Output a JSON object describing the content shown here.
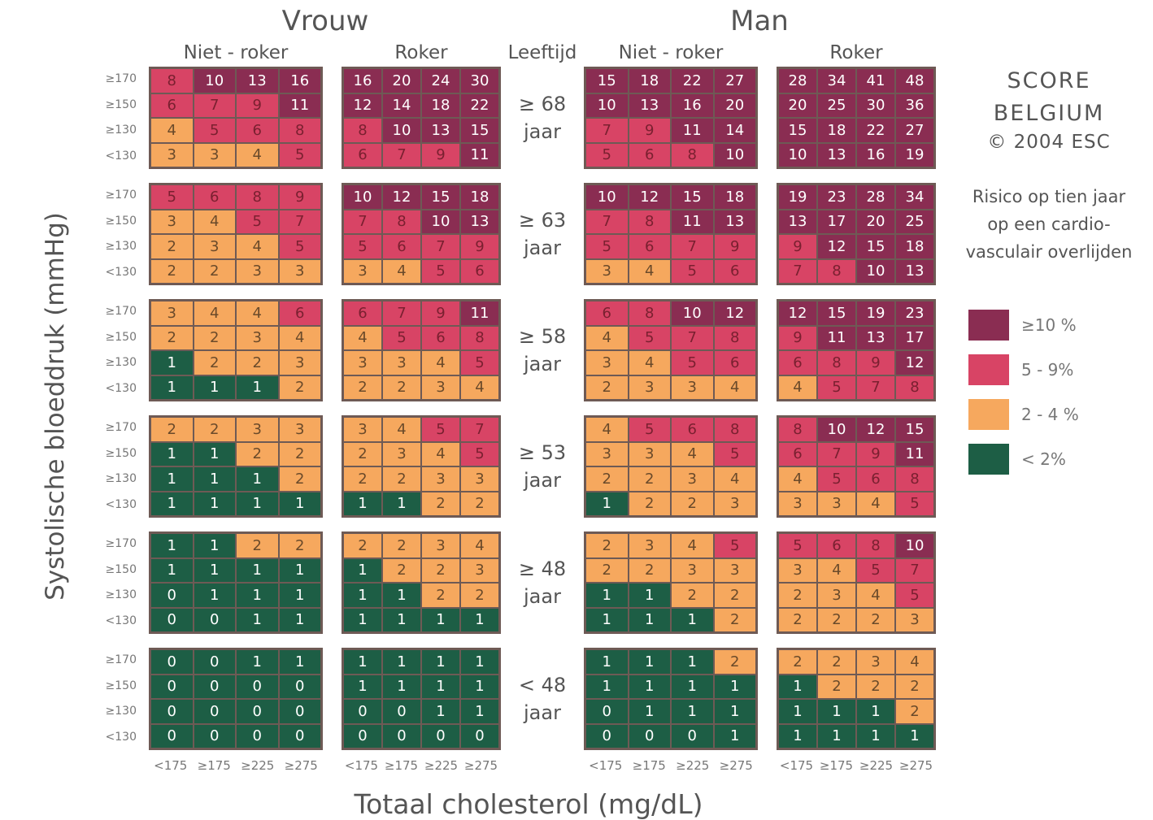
{
  "headers": {
    "female": "Vrouw",
    "male": "Man",
    "female_nonsmoker": "Niet - roker",
    "female_smoker": "Roker",
    "age_label": "Leeftijd",
    "male_nonsmoker": "Niet - roker",
    "male_smoker": "Roker"
  },
  "y_axis_label": "Systolische bloeddruk (mmHg)",
  "x_axis_label": "Totaal cholesterol  (mg/dL)",
  "score": {
    "line1": "SCORE",
    "line2": "BELGIUM",
    "line3": "© 2004 ESC",
    "desc1": "Risico op tien jaar",
    "desc2": "op een cardio-",
    "desc3": "vasculair overlijden"
  },
  "legend": [
    {
      "label": "≥10 %",
      "color": "#8a2d52"
    },
    {
      "label": "5 - 9%",
      "color": "#d84465"
    },
    {
      "label": "2 - 4 %",
      "color": "#f6a85e"
    },
    {
      "label": "< 2%",
      "color": "#1d5e45"
    }
  ],
  "chart_data": {
    "type": "heatmap",
    "bp_rows": [
      "≥170",
      "≥150",
      "≥130",
      "<130"
    ],
    "chol_cols": [
      "<175",
      "≥175",
      "≥225",
      "≥275"
    ],
    "age_groups": [
      {
        "label": "≥ 68",
        "unit": "jaar"
      },
      {
        "label": "≥ 63",
        "unit": "jaar"
      },
      {
        "label": "≥ 58",
        "unit": "jaar"
      },
      {
        "label": "≥ 53",
        "unit": "jaar"
      },
      {
        "label": "≥ 48",
        "unit": "jaar"
      },
      {
        "label": "< 48",
        "unit": "jaar"
      }
    ],
    "panels": [
      {
        "name": "Vrouw Niet - roker",
        "blocks": [
          [
            [
              8,
              10,
              13,
              16
            ],
            [
              6,
              7,
              9,
              11
            ],
            [
              4,
              5,
              6,
              8
            ],
            [
              3,
              3,
              4,
              5
            ]
          ],
          [
            [
              5,
              6,
              8,
              9
            ],
            [
              3,
              4,
              5,
              7
            ],
            [
              2,
              3,
              4,
              5
            ],
            [
              2,
              2,
              3,
              3
            ]
          ],
          [
            [
              3,
              4,
              4,
              6
            ],
            [
              2,
              2,
              3,
              4
            ],
            [
              1,
              2,
              2,
              3
            ],
            [
              1,
              1,
              1,
              2
            ]
          ],
          [
            [
              2,
              2,
              3,
              3
            ],
            [
              1,
              1,
              2,
              2
            ],
            [
              1,
              1,
              1,
              2
            ],
            [
              1,
              1,
              1,
              1
            ]
          ],
          [
            [
              1,
              1,
              2,
              2
            ],
            [
              1,
              1,
              1,
              1
            ],
            [
              0,
              1,
              1,
              1
            ],
            [
              0,
              0,
              1,
              1
            ]
          ],
          [
            [
              0,
              0,
              1,
              1
            ],
            [
              0,
              0,
              0,
              0
            ],
            [
              0,
              0,
              0,
              0
            ],
            [
              0,
              0,
              0,
              0
            ]
          ]
        ]
      },
      {
        "name": "Vrouw Roker",
        "blocks": [
          [
            [
              16,
              20,
              24,
              30
            ],
            [
              12,
              14,
              18,
              22
            ],
            [
              8,
              10,
              13,
              15
            ],
            [
              6,
              7,
              9,
              11
            ]
          ],
          [
            [
              10,
              12,
              15,
              18
            ],
            [
              7,
              8,
              10,
              13
            ],
            [
              5,
              6,
              7,
              9
            ],
            [
              3,
              4,
              5,
              6
            ]
          ],
          [
            [
              6,
              7,
              9,
              11
            ],
            [
              4,
              5,
              6,
              8
            ],
            [
              3,
              3,
              4,
              5
            ],
            [
              2,
              2,
              3,
              4
            ]
          ],
          [
            [
              3,
              4,
              5,
              7
            ],
            [
              2,
              3,
              4,
              5
            ],
            [
              2,
              2,
              3,
              3
            ],
            [
              1,
              1,
              2,
              2
            ]
          ],
          [
            [
              2,
              2,
              3,
              4
            ],
            [
              1,
              2,
              2,
              3
            ],
            [
              1,
              1,
              2,
              2
            ],
            [
              1,
              1,
              1,
              1
            ]
          ],
          [
            [
              1,
              1,
              1,
              1
            ],
            [
              1,
              1,
              1,
              1
            ],
            [
              0,
              0,
              1,
              1
            ],
            [
              0,
              0,
              0,
              0
            ]
          ]
        ]
      },
      {
        "name": "Man Niet - roker",
        "blocks": [
          [
            [
              15,
              18,
              22,
              27
            ],
            [
              10,
              13,
              16,
              20
            ],
            [
              7,
              9,
              11,
              14
            ],
            [
              5,
              6,
              8,
              10
            ]
          ],
          [
            [
              10,
              12,
              15,
              18
            ],
            [
              7,
              8,
              11,
              13
            ],
            [
              5,
              6,
              7,
              9
            ],
            [
              3,
              4,
              5,
              6
            ]
          ],
          [
            [
              6,
              8,
              10,
              12
            ],
            [
              4,
              5,
              7,
              8
            ],
            [
              3,
              4,
              5,
              6
            ],
            [
              2,
              3,
              3,
              4
            ]
          ],
          [
            [
              4,
              5,
              6,
              8
            ],
            [
              3,
              3,
              4,
              5
            ],
            [
              2,
              2,
              3,
              4
            ],
            [
              1,
              2,
              2,
              3
            ]
          ],
          [
            [
              2,
              3,
              4,
              5
            ],
            [
              2,
              2,
              3,
              3
            ],
            [
              1,
              1,
              2,
              2
            ],
            [
              1,
              1,
              1,
              2
            ]
          ],
          [
            [
              1,
              1,
              1,
              2
            ],
            [
              1,
              1,
              1,
              1
            ],
            [
              0,
              1,
              1,
              1
            ],
            [
              0,
              0,
              0,
              1
            ]
          ]
        ]
      },
      {
        "name": "Man Roker",
        "blocks": [
          [
            [
              28,
              34,
              41,
              48
            ],
            [
              20,
              25,
              30,
              36
            ],
            [
              15,
              18,
              22,
              27
            ],
            [
              10,
              13,
              16,
              19
            ]
          ],
          [
            [
              19,
              23,
              28,
              34
            ],
            [
              13,
              17,
              20,
              25
            ],
            [
              9,
              12,
              15,
              18
            ],
            [
              7,
              8,
              10,
              13
            ]
          ],
          [
            [
              12,
              15,
              19,
              23
            ],
            [
              9,
              11,
              13,
              17
            ],
            [
              6,
              8,
              9,
              12
            ],
            [
              4,
              5,
              7,
              8
            ]
          ],
          [
            [
              8,
              10,
              12,
              15
            ],
            [
              6,
              7,
              9,
              11
            ],
            [
              4,
              5,
              6,
              8
            ],
            [
              3,
              3,
              4,
              5
            ]
          ],
          [
            [
              5,
              6,
              8,
              10
            ],
            [
              3,
              4,
              5,
              7
            ],
            [
              2,
              3,
              4,
              5
            ],
            [
              2,
              2,
              2,
              3
            ]
          ],
          [
            [
              2,
              2,
              3,
              4
            ],
            [
              1,
              2,
              2,
              2
            ],
            [
              1,
              1,
              1,
              2
            ],
            [
              1,
              1,
              1,
              1
            ]
          ]
        ]
      }
    ]
  }
}
